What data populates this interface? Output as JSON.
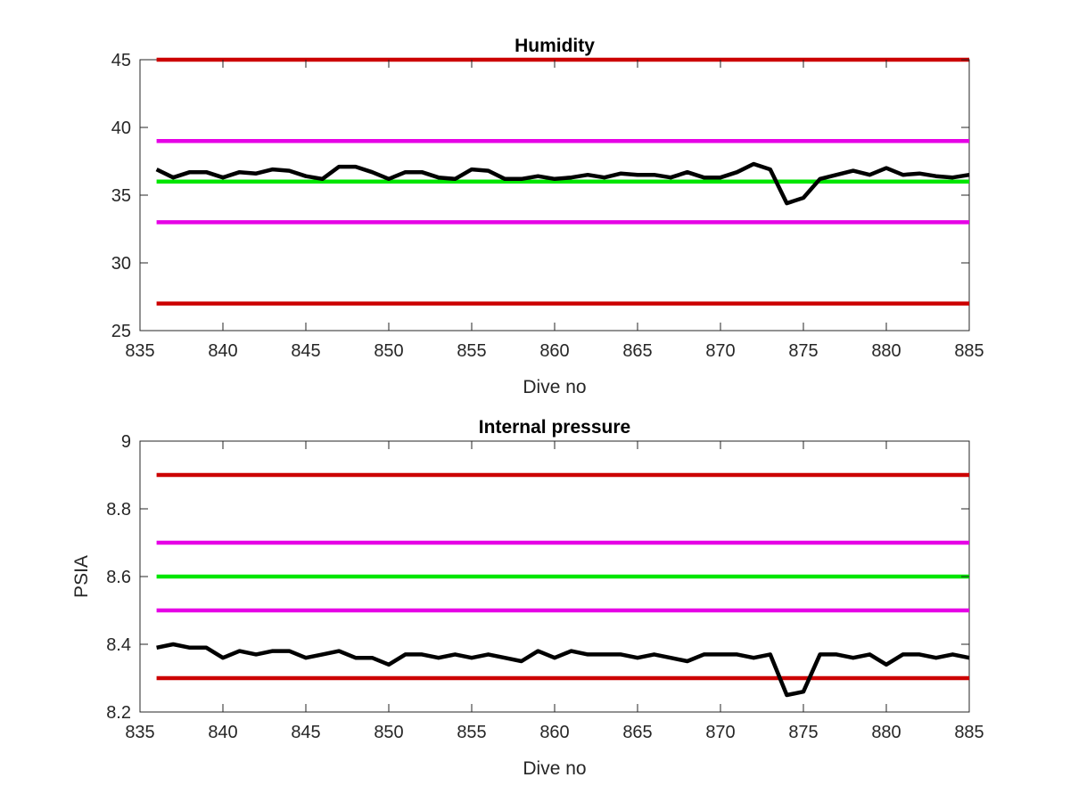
{
  "chart_data": [
    {
      "type": "line",
      "title": "Humidity",
      "xlabel": "Dive no",
      "ylabel": "",
      "xlim": [
        835,
        885
      ],
      "ylim": [
        25,
        45
      ],
      "xticks": [
        "835",
        "840",
        "845",
        "850",
        "855",
        "860",
        "865",
        "870",
        "875",
        "880",
        "885"
      ],
      "yticks": [
        "25",
        "30",
        "35",
        "40",
        "45"
      ],
      "grid": false,
      "legend": "none",
      "thresholds": [
        {
          "y": 45,
          "color": "#cc0000"
        },
        {
          "y": 39,
          "color": "#e600e6"
        },
        {
          "y": 36,
          "color": "#00e600"
        },
        {
          "y": 33,
          "color": "#e600e6"
        },
        {
          "y": 27,
          "color": "#cc0000"
        }
      ],
      "series": [
        {
          "color": "#000000",
          "x": [
            836,
            837,
            838,
            839,
            840,
            841,
            842,
            843,
            844,
            845,
            846,
            847,
            848,
            849,
            850,
            851,
            852,
            853,
            854,
            855,
            856,
            857,
            858,
            859,
            860,
            861,
            862,
            863,
            864,
            865,
            866,
            867,
            868,
            869,
            870,
            871,
            872,
            873,
            874,
            875,
            876,
            877,
            878,
            879,
            880,
            881,
            882,
            883,
            884,
            885
          ],
          "values": [
            36.9,
            36.3,
            36.7,
            36.7,
            36.3,
            36.7,
            36.6,
            36.9,
            36.8,
            36.4,
            36.2,
            37.1,
            37.1,
            36.7,
            36.2,
            36.7,
            36.7,
            36.3,
            36.2,
            36.9,
            36.8,
            36.2,
            36.2,
            36.4,
            36.2,
            36.3,
            36.5,
            36.3,
            36.6,
            36.5,
            36.5,
            36.3,
            36.7,
            36.3,
            36.3,
            36.7,
            37.3,
            36.9,
            34.4,
            34.8,
            36.2,
            36.5,
            36.8,
            36.5,
            37.0,
            36.5,
            36.6,
            36.4,
            36.3,
            36.5
          ]
        }
      ]
    },
    {
      "type": "line",
      "title": "Internal pressure",
      "xlabel": "Dive no",
      "ylabel": "PSIA",
      "xlim": [
        835,
        885
      ],
      "ylim": [
        8.2,
        9.0
      ],
      "xticks": [
        "835",
        "840",
        "845",
        "850",
        "855",
        "860",
        "865",
        "870",
        "875",
        "880",
        "885"
      ],
      "yticks": [
        "8.2",
        "8.4",
        "8.6",
        "8.8",
        "9"
      ],
      "grid": false,
      "legend": "none",
      "thresholds": [
        {
          "y": 8.9,
          "color": "#cc0000"
        },
        {
          "y": 8.7,
          "color": "#e600e6"
        },
        {
          "y": 8.6,
          "color": "#00e600"
        },
        {
          "y": 8.5,
          "color": "#e600e6"
        },
        {
          "y": 8.3,
          "color": "#cc0000"
        }
      ],
      "series": [
        {
          "color": "#000000",
          "x": [
            836,
            837,
            838,
            839,
            840,
            841,
            842,
            843,
            844,
            845,
            846,
            847,
            848,
            849,
            850,
            851,
            852,
            853,
            854,
            855,
            856,
            857,
            858,
            859,
            860,
            861,
            862,
            863,
            864,
            865,
            866,
            867,
            868,
            869,
            870,
            871,
            872,
            873,
            874,
            875,
            876,
            877,
            878,
            879,
            880,
            881,
            882,
            883,
            884,
            885
          ],
          "values": [
            8.39,
            8.4,
            8.39,
            8.39,
            8.36,
            8.38,
            8.37,
            8.38,
            8.38,
            8.36,
            8.37,
            8.38,
            8.36,
            8.36,
            8.34,
            8.37,
            8.37,
            8.36,
            8.37,
            8.36,
            8.37,
            8.36,
            8.35,
            8.38,
            8.36,
            8.38,
            8.37,
            8.37,
            8.37,
            8.36,
            8.37,
            8.36,
            8.35,
            8.37,
            8.37,
            8.37,
            8.36,
            8.37,
            8.25,
            8.26,
            8.37,
            8.37,
            8.36,
            8.37,
            8.34,
            8.37,
            8.37,
            8.36,
            8.37,
            8.36
          ]
        }
      ]
    }
  ]
}
